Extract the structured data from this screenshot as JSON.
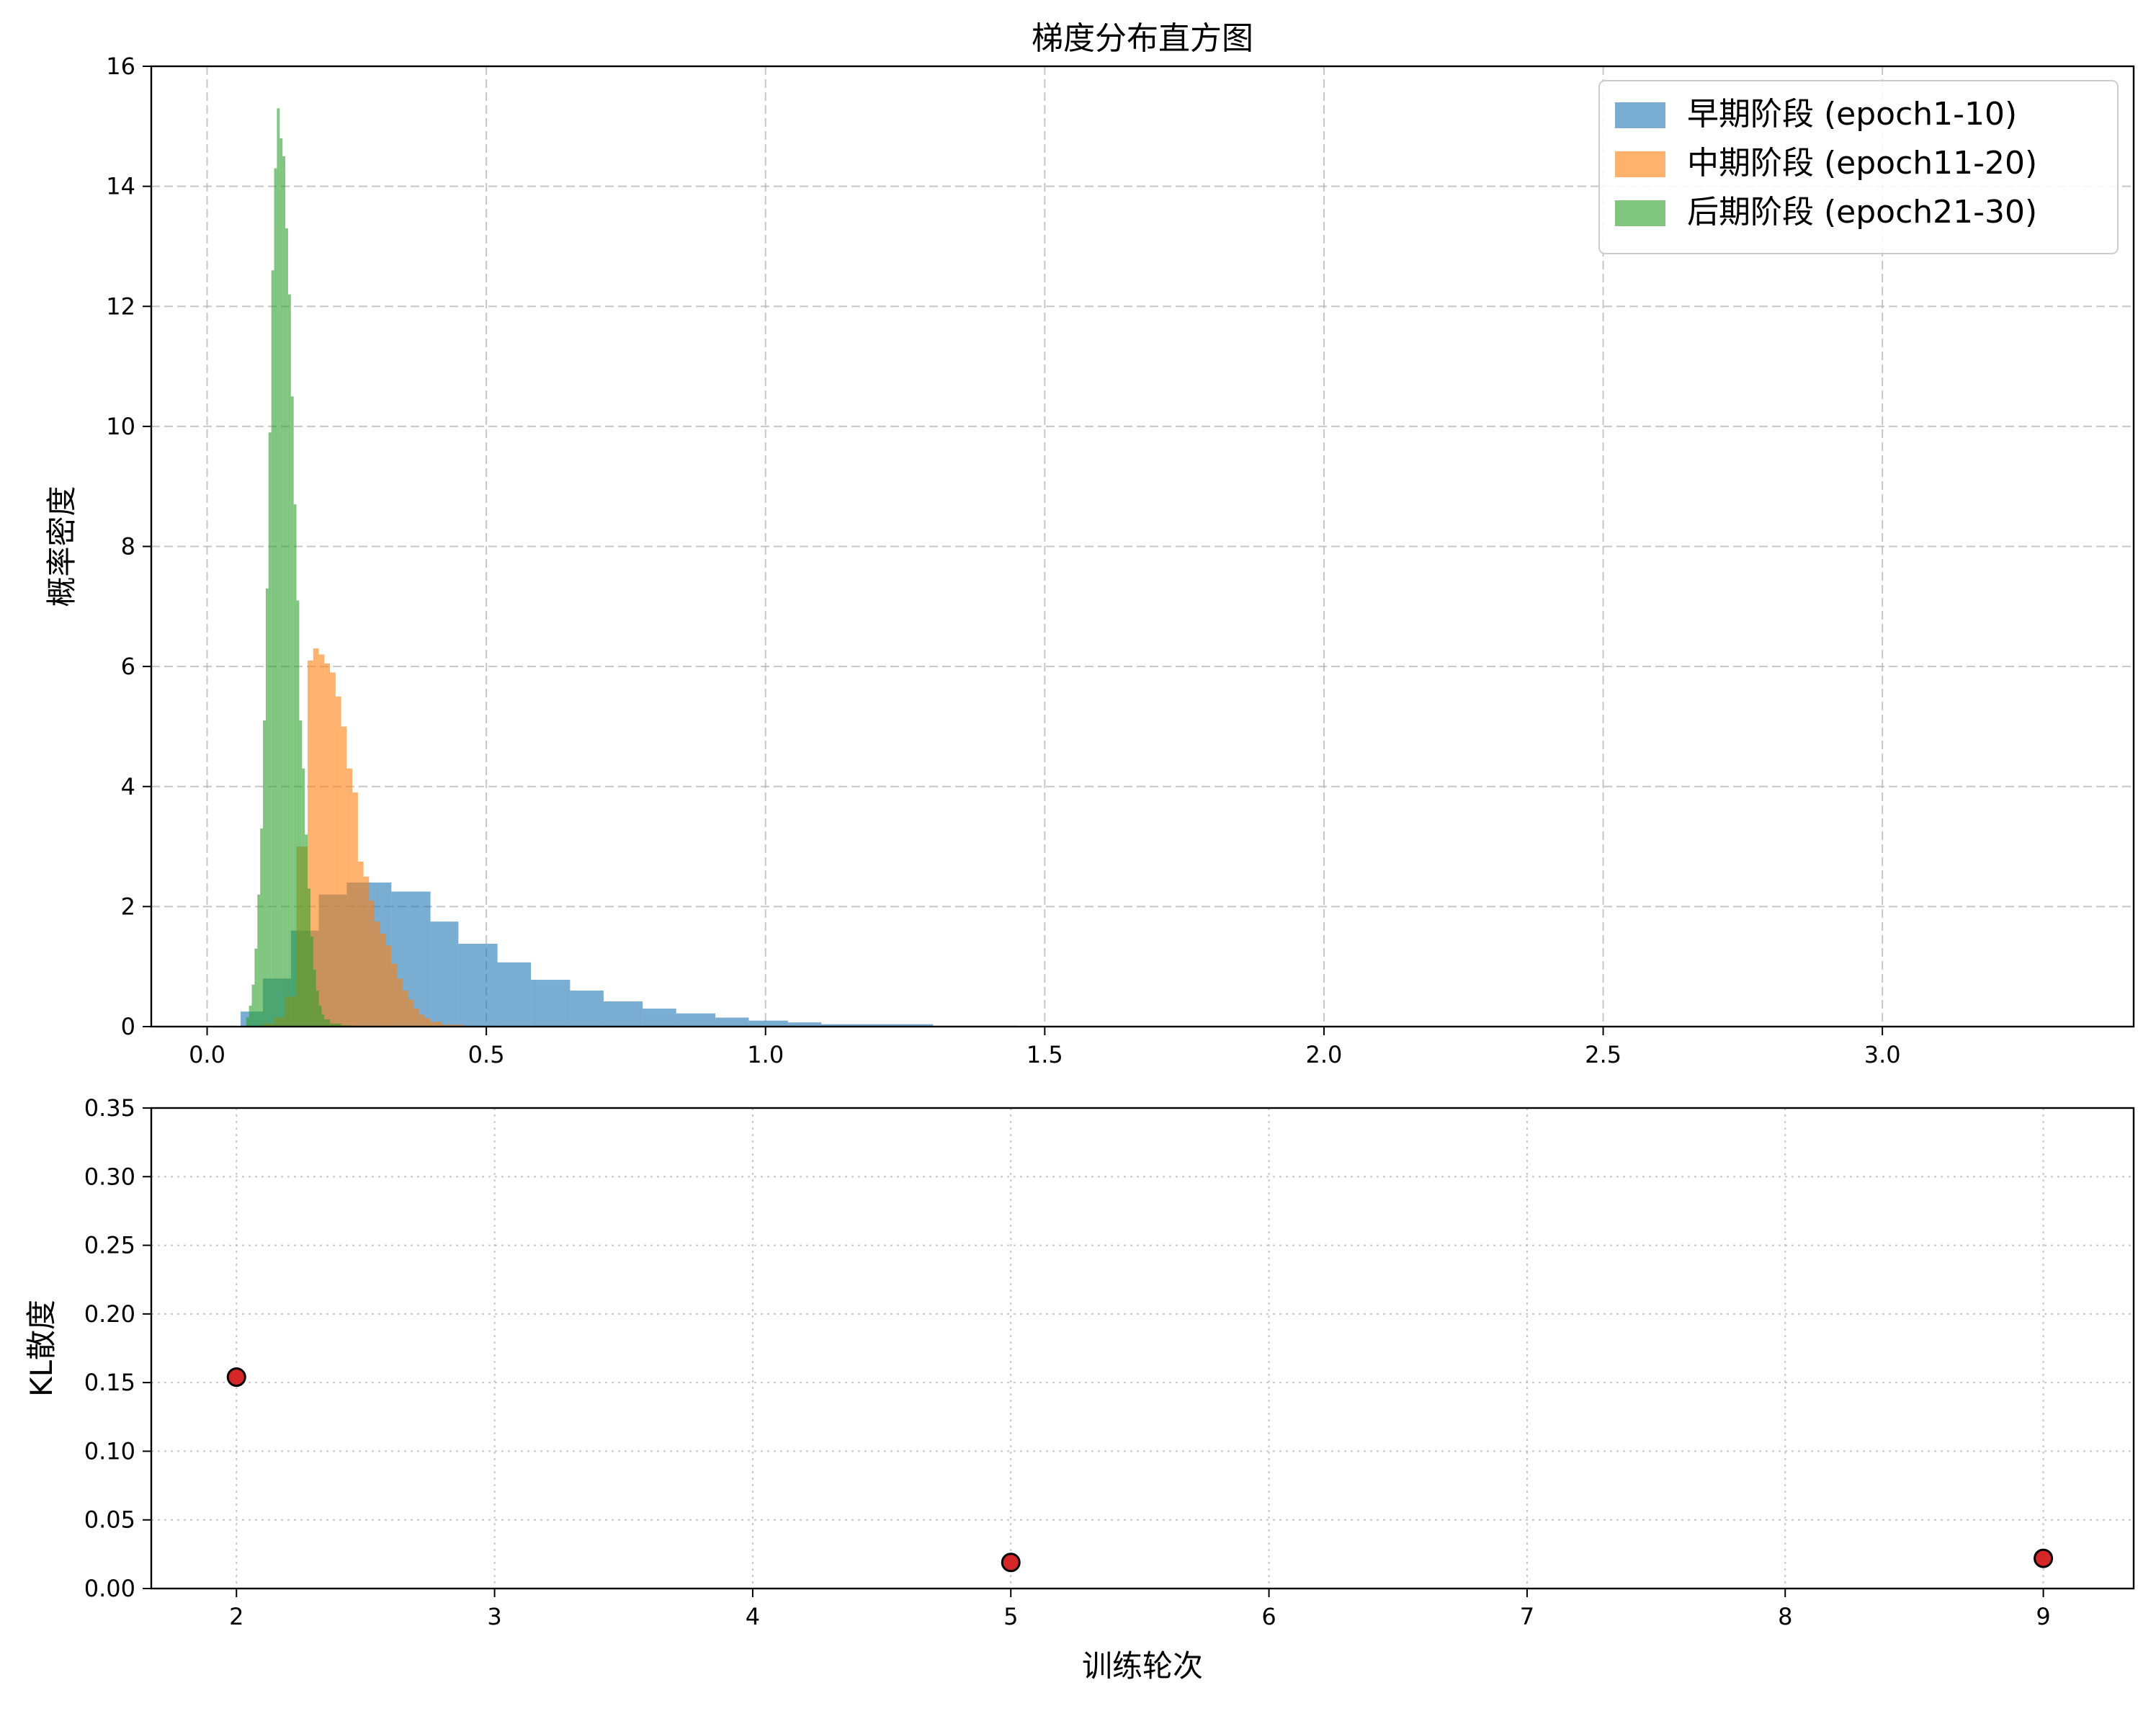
{
  "chart_data": [
    {
      "type": "histogram",
      "title": "梯度分布直方图",
      "xlabel": "",
      "ylabel": "概率密度",
      "xlim": [
        -0.1,
        3.45
      ],
      "ylim": [
        0,
        16
      ],
      "xticks": [
        0.0,
        0.5,
        1.0,
        1.5,
        2.0,
        2.5,
        3.0
      ],
      "xtick_labels": [
        "0.0",
        "0.5",
        "1.0",
        "1.5",
        "2.0",
        "2.5",
        "3.0"
      ],
      "yticks": [
        0,
        2,
        4,
        6,
        8,
        10,
        12,
        14,
        16
      ],
      "ytick_labels": [
        "0",
        "2",
        "4",
        "6",
        "8",
        "10",
        "12",
        "14",
        "16"
      ],
      "grid": true,
      "legend_position": "top-right",
      "series": [
        {
          "name": "早期阶段 (epoch1-10)",
          "color": "#1f77b4",
          "opacity": 0.6,
          "bins": [
            [
              0.06,
              0.1,
              0.25
            ],
            [
              0.1,
              0.15,
              0.8
            ],
            [
              0.15,
              0.2,
              1.6
            ],
            [
              0.2,
              0.25,
              2.2
            ],
            [
              0.25,
              0.3,
              2.4
            ],
            [
              0.3,
              0.33,
              2.4
            ],
            [
              0.33,
              0.4,
              2.25
            ],
            [
              0.4,
              0.45,
              1.75
            ],
            [
              0.45,
              0.52,
              1.38
            ],
            [
              0.52,
              0.58,
              1.07
            ],
            [
              0.58,
              0.65,
              0.78
            ],
            [
              0.65,
              0.71,
              0.6
            ],
            [
              0.71,
              0.78,
              0.42
            ],
            [
              0.78,
              0.84,
              0.3
            ],
            [
              0.84,
              0.91,
              0.22
            ],
            [
              0.91,
              0.97,
              0.15
            ],
            [
              0.97,
              1.04,
              0.1
            ],
            [
              1.04,
              1.1,
              0.07
            ],
            [
              1.1,
              1.3,
              0.04
            ],
            [
              1.3,
              1.45,
              0.015
            ]
          ]
        },
        {
          "name": "中期阶段 (epoch11-20)",
          "color": "#ff7f0e",
          "opacity": 0.6,
          "bins": [
            [
              0.1,
              0.12,
              0.05
            ],
            [
              0.12,
              0.14,
              0.15
            ],
            [
              0.14,
              0.16,
              0.5
            ],
            [
              0.16,
              0.18,
              3.0
            ],
            [
              0.18,
              0.19,
              6.1
            ],
            [
              0.19,
              0.2,
              6.3
            ],
            [
              0.2,
              0.21,
              6.2
            ],
            [
              0.21,
              0.22,
              6.05
            ],
            [
              0.22,
              0.23,
              5.9
            ],
            [
              0.23,
              0.24,
              5.5
            ],
            [
              0.24,
              0.25,
              5.0
            ],
            [
              0.25,
              0.26,
              4.3
            ],
            [
              0.26,
              0.27,
              3.9
            ],
            [
              0.27,
              0.28,
              2.75
            ],
            [
              0.28,
              0.29,
              2.5
            ],
            [
              0.29,
              0.3,
              2.1
            ],
            [
              0.3,
              0.31,
              1.75
            ],
            [
              0.31,
              0.32,
              1.55
            ],
            [
              0.32,
              0.33,
              1.35
            ],
            [
              0.33,
              0.34,
              1.05
            ],
            [
              0.34,
              0.35,
              0.8
            ],
            [
              0.35,
              0.36,
              0.6
            ],
            [
              0.36,
              0.37,
              0.45
            ],
            [
              0.37,
              0.38,
              0.3
            ],
            [
              0.38,
              0.39,
              0.2
            ],
            [
              0.39,
              0.4,
              0.14
            ],
            [
              0.4,
              0.42,
              0.08
            ],
            [
              0.42,
              0.46,
              0.03
            ],
            [
              0.46,
              0.5,
              0.01
            ]
          ]
        },
        {
          "name": "后期阶段 (epoch21-30)",
          "color": "#2ca02c",
          "opacity": 0.6,
          "bins": [
            [
              0.07,
              0.075,
              0.15
            ],
            [
              0.075,
              0.08,
              0.35
            ],
            [
              0.08,
              0.085,
              0.7
            ],
            [
              0.085,
              0.09,
              1.3
            ],
            [
              0.09,
              0.095,
              2.2
            ],
            [
              0.095,
              0.1,
              3.3
            ],
            [
              0.1,
              0.105,
              5.1
            ],
            [
              0.105,
              0.11,
              7.3
            ],
            [
              0.11,
              0.115,
              9.9
            ],
            [
              0.115,
              0.12,
              12.6
            ],
            [
              0.12,
              0.125,
              14.3
            ],
            [
              0.125,
              0.13,
              15.3
            ],
            [
              0.13,
              0.135,
              14.8
            ],
            [
              0.135,
              0.14,
              14.5
            ],
            [
              0.14,
              0.145,
              13.3
            ],
            [
              0.145,
              0.15,
              12.2
            ],
            [
              0.15,
              0.155,
              10.5
            ],
            [
              0.155,
              0.16,
              8.7
            ],
            [
              0.16,
              0.165,
              7.1
            ],
            [
              0.165,
              0.17,
              5.1
            ],
            [
              0.17,
              0.175,
              4.3
            ],
            [
              0.175,
              0.18,
              3.2
            ],
            [
              0.18,
              0.185,
              2.3
            ],
            [
              0.185,
              0.19,
              1.5
            ],
            [
              0.19,
              0.195,
              0.95
            ],
            [
              0.195,
              0.2,
              0.6
            ],
            [
              0.2,
              0.205,
              0.35
            ],
            [
              0.205,
              0.21,
              0.2
            ],
            [
              0.21,
              0.22,
              0.12
            ],
            [
              0.22,
              0.24,
              0.05
            ],
            [
              0.24,
              0.26,
              0.02
            ]
          ]
        }
      ]
    },
    {
      "type": "scatter",
      "title": "",
      "xlabel": "训练轮次",
      "ylabel": "KL散度",
      "xlim": [
        1.67,
        9.35
      ],
      "ylim": [
        0,
        0.35
      ],
      "xticks": [
        2,
        3,
        4,
        5,
        6,
        7,
        8,
        9
      ],
      "xtick_labels": [
        "2",
        "3",
        "4",
        "5",
        "6",
        "7",
        "8",
        "9"
      ],
      "yticks": [
        0.0,
        0.05,
        0.1,
        0.15,
        0.2,
        0.25,
        0.3,
        0.35
      ],
      "ytick_labels": [
        "0.00",
        "0.05",
        "0.10",
        "0.15",
        "0.20",
        "0.25",
        "0.30",
        "0.35"
      ],
      "grid": true,
      "marker_color": "#d62728",
      "marker_edge_color": "#000000",
      "x": [
        2,
        5,
        9
      ],
      "y": [
        0.154,
        0.019,
        0.022
      ]
    }
  ]
}
